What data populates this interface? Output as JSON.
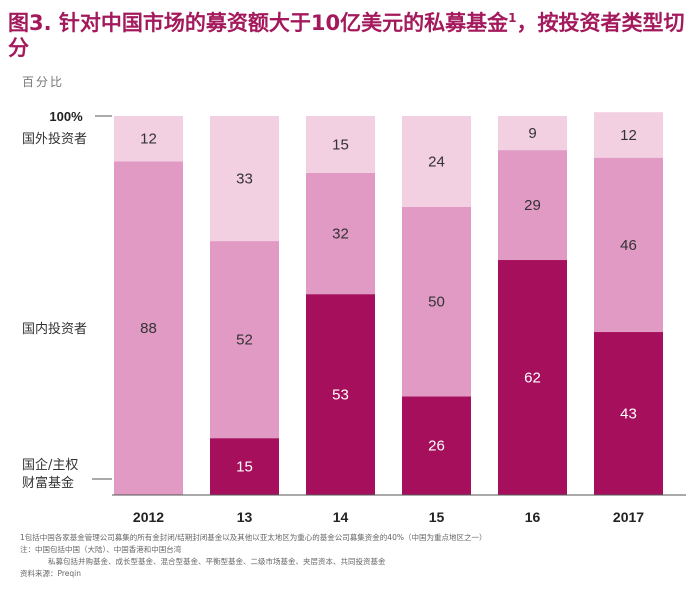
{
  "title": {
    "main": "图3. 针对中国市场的募资额大于10亿美元的私募基金",
    "sup": "1",
    "rest": "，按投资者类型切分"
  },
  "unit_label": "百分比",
  "chart_data": {
    "type": "bar",
    "stacked": true,
    "categories": [
      "2012",
      "13",
      "14",
      "15",
      "16",
      "2017"
    ],
    "ylim": [
      0,
      100
    ],
    "y_tick_label": "100%",
    "series": [
      {
        "name": "国企/主权财富基金",
        "color": "#a50f5b",
        "values": [
          0,
          15,
          53,
          26,
          62,
          43
        ]
      },
      {
        "name": "国内投资者",
        "color": "#e09ac4",
        "values": [
          88,
          52,
          32,
          50,
          29,
          46
        ]
      },
      {
        "name": "国外投资者",
        "color": "#f3cfe2",
        "values": [
          12,
          33,
          15,
          24,
          9,
          12
        ]
      }
    ],
    "legend_placement": "left"
  },
  "legend": {
    "foreign": "国外投资者",
    "domestic": "国内投资者",
    "soe_line1": "国企/主权",
    "soe_line2": "财富基金"
  },
  "footnotes": {
    "line1": "1包括中国各家基金管理公司募集的所有金封闭/结期封闭基金以及其他以亚太地区为重心的基金公司募集资金的40%（中国为重点地区之一）",
    "line2": "注：中国包括中国（大陆）、中国香港和中国台湾",
    "line3": "私募包括并购基金、成长型基金、混合型基金、平衡型基金、二级市场基金、夹层资本、共同投资基金",
    "line4": "资料来源：Preqin"
  }
}
